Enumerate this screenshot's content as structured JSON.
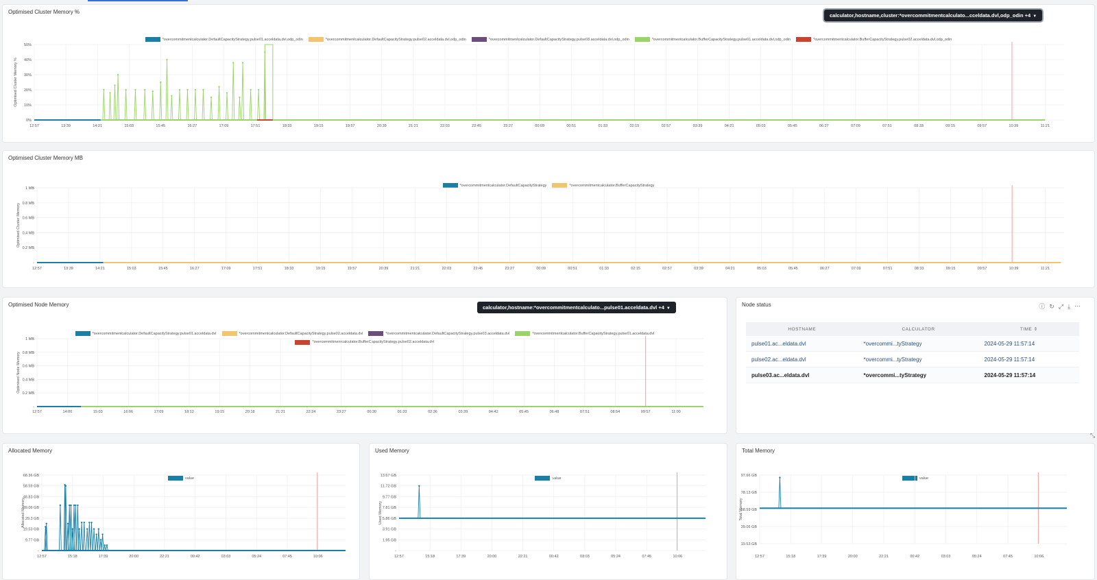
{
  "panels": {
    "cluster_pct": {
      "title": "Optimised Cluster Memory %",
      "filter_chip": "calculator,hostname,cluster:*overcommitmentcalculato...cceldata.dvl,odp_odin +4",
      "legend": [
        {
          "name": "*overcommitmentcalculator.DefaultCapacityStrategy.pulse01.acceldata.dvl,odp_odin",
          "color": "#1a7fa5"
        },
        {
          "name": "*overcommitmentcalculator.DefaultCapacityStrategy.pulse02.acceldata.dvl,odp_odin",
          "color": "#f2c46d"
        },
        {
          "name": "*overcommitmentcalculator.DefaultCapacityStrategy.pulse03.acceldata.dvl,odp_odin",
          "color": "#6b4c7a"
        },
        {
          "name": "*overcommitmentcalculator.BufferCapacityStrategy.pulse01.acceldata.dvl,odp_odin",
          "color": "#9ad469"
        },
        {
          "name": "*overcommitmentcalculator.BufferCapacityStrategy.pulse02.acceldata.dvl,odp_odin",
          "color": "#c9442f"
        }
      ]
    },
    "cluster_mb": {
      "title": "Optimised Cluster Memory MB",
      "legend": [
        {
          "name": "*overcommitmentcalculator.DefaultCapacityStrategy",
          "color": "#1a7fa5"
        },
        {
          "name": "*overcommitmentcalculator.BufferCapacityStrategy",
          "color": "#f2c46d"
        }
      ]
    },
    "node_mem": {
      "title": "Optimised Node Memory",
      "filter_chip": "calculator,hostname:*overcommitmentcalculato...pulse01.acceldata.dvl +4",
      "legend": [
        {
          "name": "*overcommitmentcalculator.DefaultCapacityStrategy.pulse01.acceldata.dvl",
          "color": "#1a7fa5"
        },
        {
          "name": "*overcommitmentcalculator.DefaultCapacityStrategy.pulse02.acceldata.dvl",
          "color": "#f2c46d"
        },
        {
          "name": "*overcommitmentcalculator.DefaultCapacityStrategy.pulse03.acceldata.dvl",
          "color": "#6b4c7a"
        },
        {
          "name": "*overcommitmentcalculator.BufferCapacityStrategy.pulse01.acceldata.dvl",
          "color": "#9ad469"
        },
        {
          "name": "*overcommitmentcalculator.BufferCapacityStrategy.pulse02.acceldata.dvl",
          "color": "#c9442f"
        }
      ]
    },
    "node_status": {
      "title": "Node status",
      "icons": [
        "info-icon",
        "refresh-icon",
        "expand-icon",
        "download-icon",
        "more-icon"
      ],
      "columns": [
        "HOSTNAME",
        "CALCULATOR",
        "TIME"
      ],
      "sort_glyph": "⇕",
      "rows": [
        {
          "hostname": "pulse01.ac...eldata.dvl",
          "calculator": "*overcommi...tyStrategy",
          "time": "2024-05-29 11:57:14"
        },
        {
          "hostname": "pulse02.ac...eldata.dvl",
          "calculator": "*overcommi...tyStrategy",
          "time": "2024-05-29 11:57:14"
        },
        {
          "hostname": "pulse03.ac...eldata.dvl",
          "calculator": "*overcommi...tyStrategy",
          "time": "2024-05-29 11:57:14"
        }
      ]
    },
    "allocated": {
      "title": "Allocated Memory",
      "legend": [
        {
          "name": "value",
          "color": "#1a7fa5"
        }
      ]
    },
    "used": {
      "title": "Used Memory",
      "legend": [
        {
          "name": "value",
          "color": "#1a7fa5"
        }
      ]
    },
    "total": {
      "title": "Total Memory",
      "legend": [
        {
          "name": "value",
          "color": "#1a7fa5"
        }
      ]
    }
  },
  "chart_data": [
    {
      "id": "cluster_pct",
      "type": "line",
      "ylabel": "Optimised Cluster Memory %",
      "yticks": [
        "0%",
        "10%",
        "20%",
        "30%",
        "40%",
        "50%"
      ],
      "ylim": [
        0,
        50
      ],
      "xticks": [
        "12:57",
        "13:39",
        "14:21",
        "15:03",
        "15:45",
        "16:27",
        "17:09",
        "17:51",
        "18:33",
        "19:15",
        "19:57",
        "20:39",
        "21:21",
        "22:03",
        "22:45",
        "23:27",
        "00:09",
        "00:51",
        "01:33",
        "02:15",
        "02:57",
        "03:39",
        "04:21",
        "05:03",
        "05:45",
        "06:27",
        "07:09",
        "07:51",
        "08:33",
        "09:15",
        "09:57",
        "10:39",
        "11:21"
      ],
      "series": [
        {
          "name": "*overcommitmentcalculator.BufferCapacityStrategy.pulse01.acceldata.dvl,odp_odin",
          "color": "#9ad469",
          "spikes": [
            [
              2.2,
              20
            ],
            [
              2.4,
              18
            ],
            [
              2.55,
              23
            ],
            [
              2.65,
              30
            ],
            [
              2.9,
              20
            ],
            [
              3.2,
              20
            ],
            [
              3.5,
              20
            ],
            [
              3.75,
              19
            ],
            [
              4.0,
              25
            ],
            [
              4.2,
              40
            ],
            [
              4.35,
              16
            ],
            [
              4.6,
              20
            ],
            [
              4.85,
              20
            ],
            [
              5.1,
              20
            ],
            [
              5.35,
              20
            ],
            [
              5.6,
              15
            ],
            [
              5.85,
              22
            ],
            [
              6.1,
              18
            ],
            [
              6.3,
              38
            ],
            [
              6.5,
              15
            ],
            [
              6.6,
              38
            ],
            [
              6.85,
              20
            ],
            [
              7.1,
              20
            ],
            [
              7.3,
              45
            ]
          ],
          "baseline": 0,
          "start": 2.1,
          "end": 32,
          "plateau": [
            7.3,
            7.55,
            50
          ]
        },
        {
          "name": "*overcommitmentcalculator.DefaultCapacityStrategy.pulse01.acceldata.dvl,odp_odin",
          "color": "#1a7fa5",
          "baseline": 0,
          "start": 0,
          "end": 2.1
        },
        {
          "name": "*overcommitmentcalculator.BufferCapacityStrategy.pulse02.acceldata.dvl,odp_odin",
          "color": "#c9442f",
          "baseline": 0,
          "start": 7.05,
          "end": 7.55
        }
      ],
      "marker_x": 30.95
    },
    {
      "id": "cluster_mb",
      "type": "line",
      "ylabel": "Optimised Cluster Memory",
      "yticks": [
        "-",
        "0.2 MB",
        "0.4 MB",
        "0.6 MB",
        "0.8 MB",
        "1 MB"
      ],
      "ylim": [
        0,
        1
      ],
      "xticks": [
        "12:57",
        "13:39",
        "14:21",
        "15:03",
        "15:45",
        "16:27",
        "17:09",
        "17:51",
        "18:33",
        "19:15",
        "19:57",
        "20:39",
        "21:21",
        "22:03",
        "22:45",
        "23:27",
        "00:09",
        "00:51",
        "01:33",
        "02:15",
        "02:57",
        "03:39",
        "04:21",
        "05:03",
        "05:45",
        "06:27",
        "07:09",
        "07:51",
        "08:33",
        "09:15",
        "09:57",
        "10:39",
        "11:21"
      ],
      "series": [
        {
          "name": "*overcommitmentcalculator.DefaultCapacityStrategy",
          "color": "#1a7fa5",
          "baseline": 0,
          "start": 0,
          "end": 2.1
        },
        {
          "name": "*overcommitmentcalculator.BufferCapacityStrategy",
          "color": "#f2c46d",
          "baseline": 0,
          "start": 2.1,
          "end": 32.5
        }
      ],
      "marker_x": 30.95
    },
    {
      "id": "node_mem",
      "type": "line",
      "ylabel": "Optimised Node Memory",
      "yticks": [
        "-",
        "0.2 MB",
        "0.4 MB",
        "0.6 MB",
        "0.8 MB",
        "1 MB"
      ],
      "ylim": [
        0,
        1
      ],
      "xticks": [
        "12:57",
        "14:00",
        "15:03",
        "16:06",
        "17:09",
        "18:12",
        "19:15",
        "20:18",
        "21:21",
        "22:24",
        "23:27",
        "00:30",
        "01:33",
        "02:36",
        "03:39",
        "04:42",
        "05:45",
        "06:48",
        "07:51",
        "08:54",
        "09:57",
        "11:00"
      ],
      "series": [
        {
          "name": "*overcommitmentcalculator.DefaultCapacityStrategy.pulse01.acceldata.dvl",
          "color": "#1a7fa5",
          "baseline": 0,
          "start": 0,
          "end": 1.45
        },
        {
          "name": "*overcommitmentcalculator.BufferCapacityStrategy.pulse01.acceldata.dvl",
          "color": "#9ad469",
          "baseline": 0,
          "start": 1.45,
          "end": 21.9
        }
      ],
      "marker_x": 20.0
    },
    {
      "id": "allocated",
      "type": "line",
      "ylabel": "Allocated Memory",
      "yticks": [
        "-",
        "9.77 GB",
        "19.53 GB",
        "29.3 GB",
        "39.06 GB",
        "48.83 GB",
        "58.59 GB",
        "68.36 GB"
      ],
      "ylim": [
        0,
        7
      ],
      "xticks": [
        "12:57",
        "15:18",
        "17:39",
        "20:00",
        "22:21",
        "00:42",
        "03:03",
        "05:24",
        "07:45",
        "10:06"
      ],
      "series": [
        {
          "name": "value",
          "color": "#1a7fa5",
          "baseline": 0,
          "start": 0,
          "end": 9.9,
          "spikes": [
            [
              0.12,
              2.2
            ],
            [
              0.15,
              2.5
            ],
            [
              0.6,
              4.2
            ],
            [
              0.75,
              6.1
            ],
            [
              0.78,
              6.0
            ],
            [
              0.85,
              2.5
            ],
            [
              0.9,
              4.2
            ],
            [
              0.95,
              4.2
            ],
            [
              1.0,
              2.0
            ],
            [
              1.05,
              4.2
            ],
            [
              1.1,
              4.2
            ],
            [
              1.17,
              4.2
            ],
            [
              1.22,
              2.0
            ],
            [
              1.3,
              2.6
            ],
            [
              1.38,
              2.6
            ],
            [
              1.48,
              2.0
            ],
            [
              1.55,
              2.6
            ],
            [
              1.62,
              2.6
            ],
            [
              1.7,
              2.0
            ],
            [
              1.78,
              1.5
            ],
            [
              1.85,
              2.0
            ],
            [
              1.92,
              1.0
            ],
            [
              1.98,
              1.5
            ],
            [
              2.05,
              0.5
            ],
            [
              2.12,
              0.5
            ]
          ]
        }
      ],
      "marker_x": 8.98
    },
    {
      "id": "used",
      "type": "line",
      "ylabel": "Used Memory",
      "yticks": [
        "-",
        "1.95 GB",
        "3.91 GB",
        "5.86 GB",
        "7.81 GB",
        "9.77 GB",
        "11.72 GB",
        "13.67 GB"
      ],
      "ylim": [
        0,
        7
      ],
      "xticks": [
        "12:57",
        "15:18",
        "17:39",
        "20:00",
        "22:21",
        "00:42",
        "03:03",
        "05:24",
        "07:45",
        "10:06"
      ],
      "series": [
        {
          "name": "value",
          "color": "#1a7fa5",
          "baseline": 3.0,
          "start": 0,
          "end": 9.9,
          "spikes": [
            [
              0.65,
              6.0
            ]
          ]
        }
      ],
      "marker_x": 8.98
    },
    {
      "id": "total",
      "type": "line",
      "ylabel": "Total Memory",
      "yticks": [
        "19.53 GB",
        "39.06 GB",
        "58.59 GB",
        "78.13 GB",
        "97.66 GB"
      ],
      "ylim": [
        0,
        5.6
      ],
      "xticks": [
        "12:57",
        "15:18",
        "17:39",
        "20:00",
        "22:21",
        "00:42",
        "03:03",
        "05:24",
        "07:45",
        "10:06"
      ],
      "series": [
        {
          "name": "value",
          "color": "#1a7fa5",
          "baseline": 2.9,
          "start": 0,
          "end": 9.9,
          "spikes": [
            [
              0.65,
              5.4
            ]
          ]
        }
      ],
      "marker_x": 8.98
    }
  ]
}
